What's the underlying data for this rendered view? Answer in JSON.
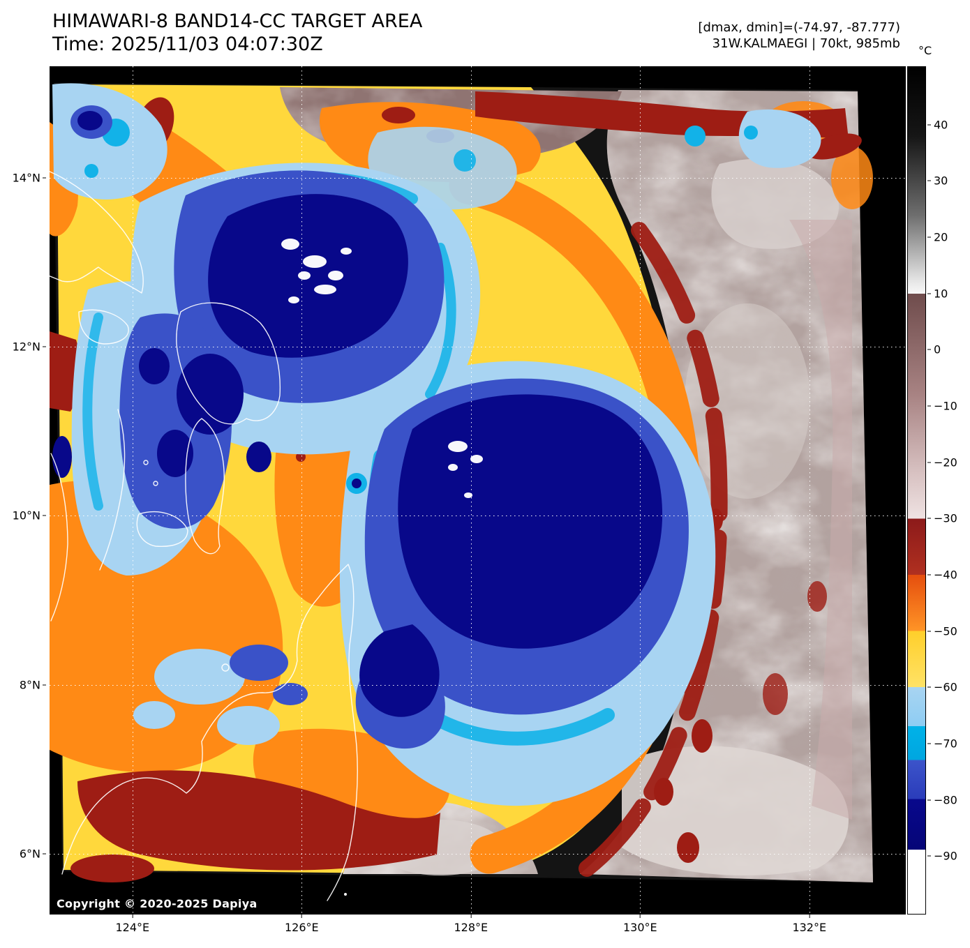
{
  "header": {
    "title": "HIMAWARI-8 BAND14-CC TARGET AREA",
    "time_line": "Time: 2025/11/03 04:07:30Z"
  },
  "info": {
    "dmax_dmin": "[dmax, dmin]=(-74.97, -87.777)",
    "storm": "31W.KALMAEGI | 70kt, 985mb"
  },
  "colorbar": {
    "unit_label": "°C",
    "vmax": 50.4,
    "vmin": -100.4,
    "ticks": [
      {
        "label": "40",
        "value": 40
      },
      {
        "label": "30",
        "value": 30
      },
      {
        "label": "20",
        "value": 20
      },
      {
        "label": "10",
        "value": 10
      },
      {
        "label": "0",
        "value": 0
      },
      {
        "label": "−10",
        "value": -10
      },
      {
        "label": "−20",
        "value": -20
      },
      {
        "label": "−30",
        "value": -30
      },
      {
        "label": "−40",
        "value": -40
      },
      {
        "label": "−50",
        "value": -50
      },
      {
        "label": "−60",
        "value": -60
      },
      {
        "label": "−70",
        "value": -70
      },
      {
        "label": "−80",
        "value": -80
      },
      {
        "label": "−90",
        "value": -90
      }
    ],
    "stops": [
      {
        "value": 50.4,
        "color": "#000000"
      },
      {
        "value": 38,
        "color": "#161616"
      },
      {
        "value": 24,
        "color": "#6e6e6e"
      },
      {
        "value": 12,
        "color": "#e8e8e8"
      },
      {
        "value": 10,
        "color": "#f8f8f8"
      },
      {
        "value": 10,
        "color": "#6f4c4c"
      },
      {
        "value": -8,
        "color": "#a88383"
      },
      {
        "value": -22,
        "color": "#d8c2c2"
      },
      {
        "value": -30,
        "color": "#efe2e2"
      },
      {
        "value": -30,
        "color": "#8c1a1a"
      },
      {
        "value": -40,
        "color": "#b03020"
      },
      {
        "value": -40,
        "color": "#e54e0e"
      },
      {
        "value": -50,
        "color": "#ff9426"
      },
      {
        "value": -50,
        "color": "#ffcf2a"
      },
      {
        "value": -60,
        "color": "#ffe266"
      },
      {
        "value": -60,
        "color": "#a8d4f2"
      },
      {
        "value": -67,
        "color": "#8ecdf3"
      },
      {
        "value": -67,
        "color": "#00b2e8"
      },
      {
        "value": -73,
        "color": "#00a6e0"
      },
      {
        "value": -73,
        "color": "#3c54ca"
      },
      {
        "value": -80,
        "color": "#2a3cba"
      },
      {
        "value": -80,
        "color": "#08088c"
      },
      {
        "value": -89,
        "color": "#050577"
      },
      {
        "value": -89,
        "color": "#ffffff"
      },
      {
        "value": -100.4,
        "color": "#ffffff"
      }
    ]
  },
  "axes": {
    "lon_range": [
      123.02,
      133.14
    ],
    "lat_range": [
      5.28,
      15.32
    ],
    "x_ticks": [
      {
        "label": "124°E",
        "lon": 124
      },
      {
        "label": "126°E",
        "lon": 126
      },
      {
        "label": "128°E",
        "lon": 128
      },
      {
        "label": "130°E",
        "lon": 130
      },
      {
        "label": "132°E",
        "lon": 132
      }
    ],
    "y_ticks": [
      {
        "label": "14°N",
        "lat": 14
      },
      {
        "label": "12°N",
        "lat": 12
      },
      {
        "label": "10°N",
        "lat": 10
      },
      {
        "label": "8°N",
        "lat": 8
      },
      {
        "label": "6°N",
        "lat": 6
      }
    ]
  },
  "footer": {
    "copyright": "Copyright © 2020-2025 Dapiya"
  }
}
